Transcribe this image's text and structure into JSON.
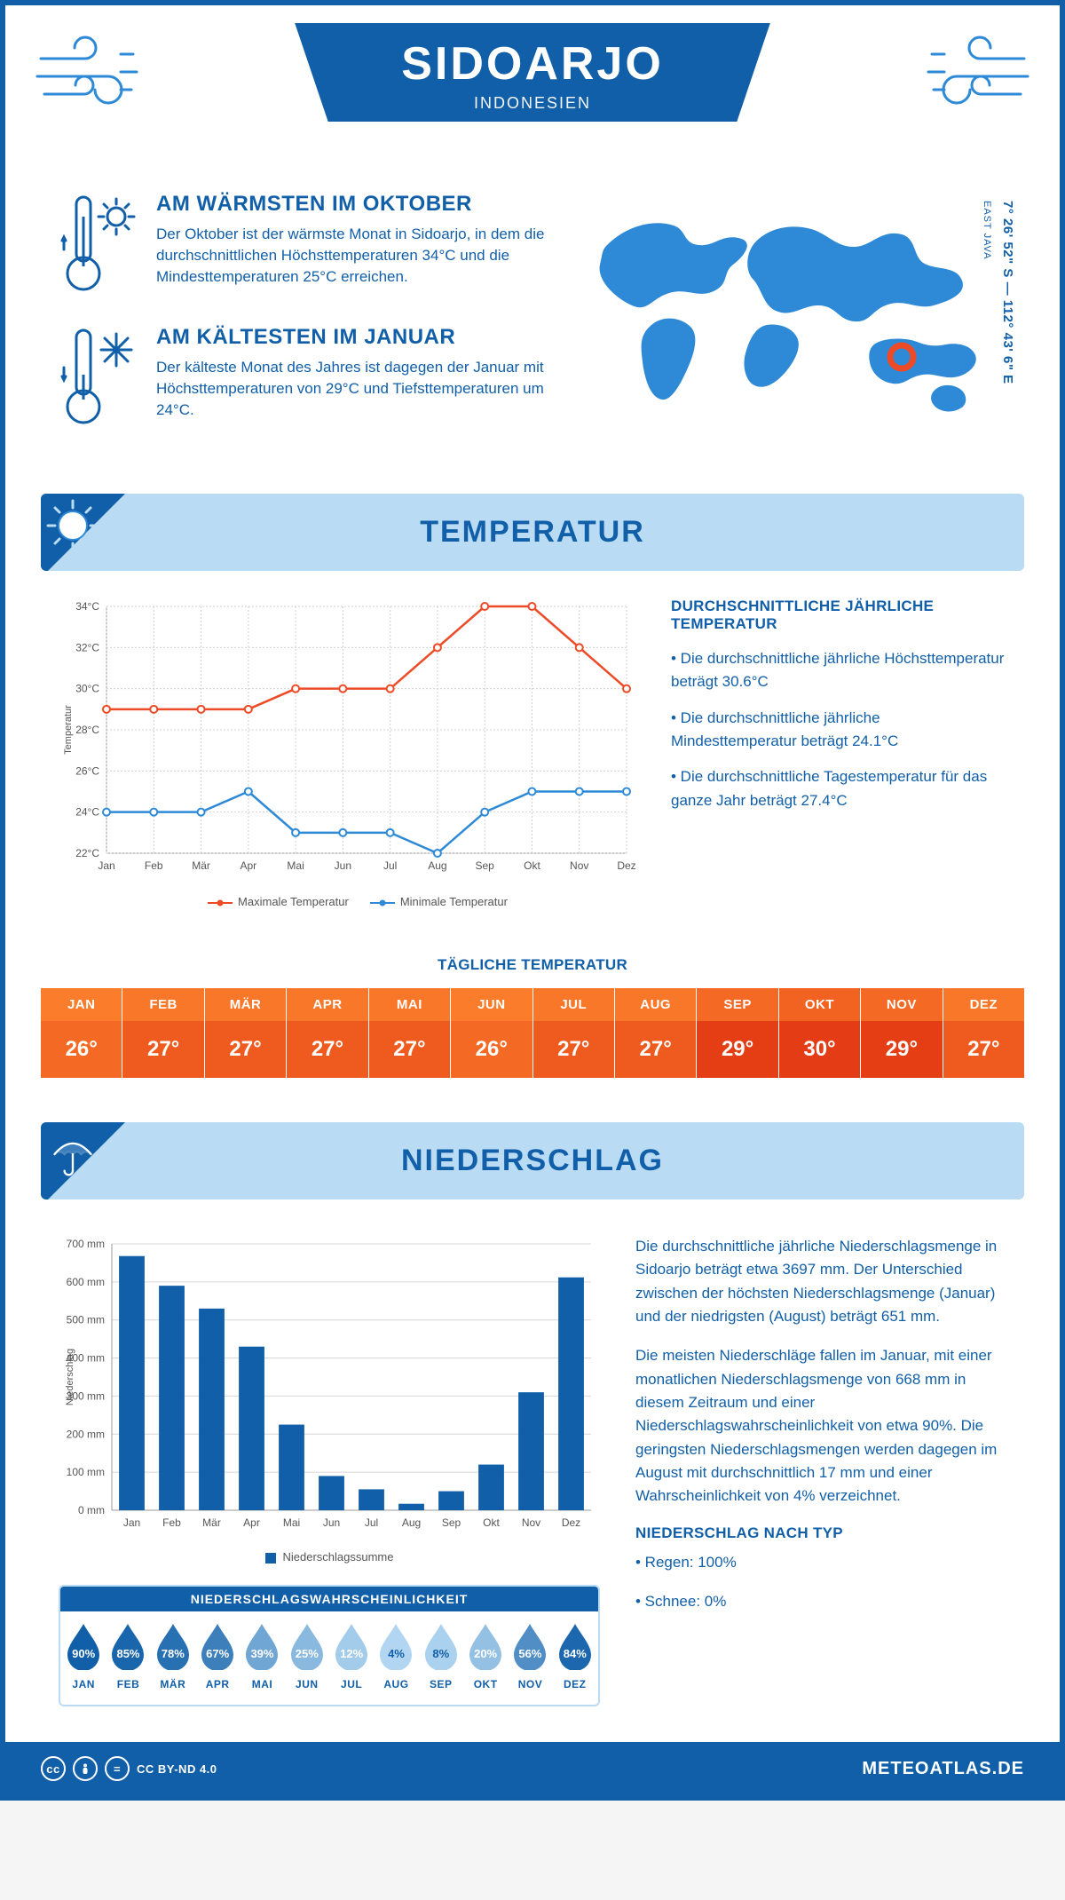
{
  "header": {
    "title": "SIDOARJO",
    "subtitle": "INDONESIEN"
  },
  "coordinates": "7° 26' 52\" S — 112° 43' 6\" E",
  "region": "EAST JAVA",
  "marker_color": "#ed4b27",
  "map_color": "#2e8ad6",
  "facts": [
    {
      "title": "AM WÄRMSTEN IM OKTOBER",
      "text": "Der Oktober ist der wärmste Monat in Sidoarjo, in dem die durchschnittlichen Höchsttemperaturen 34°C und die Mindesttemperaturen 25°C erreichen.",
      "icon": "thermo-hot"
    },
    {
      "title": "AM KÄLTESTEN IM JANUAR",
      "text": "Der kälteste Monat des Jahres ist dagegen der Januar mit Höchsttemperaturen von 29°C und Tiefsttemperaturen um 24°C.",
      "icon": "thermo-cold"
    }
  ],
  "sections": {
    "temperature_title": "TEMPERATUR",
    "precipitation_title": "NIEDERSCHLAG"
  },
  "temperature": {
    "side_title": "DURCHSCHNITTLICHE JÄHRLICHE TEMPERATUR",
    "bullets": [
      "• Die durchschnittliche jährliche Höchsttemperatur beträgt 30.6°C",
      "• Die durchschnittliche jährliche Mindesttemperatur beträgt 24.1°C",
      "• Die durchschnittliche Tagestemperatur für das ganze Jahr beträgt 27.4°C"
    ],
    "chart": {
      "months": [
        "Jan",
        "Feb",
        "Mär",
        "Apr",
        "Mai",
        "Jun",
        "Jul",
        "Aug",
        "Sep",
        "Okt",
        "Nov",
        "Dez"
      ],
      "ylim": [
        22,
        34
      ],
      "ystep": 2,
      "ylabel": "Temperatur",
      "series": [
        {
          "name": "Maximale Temperatur",
          "color": "#ed4b27",
          "values": [
            29,
            29,
            29,
            29,
            30,
            30,
            30,
            32,
            34,
            34,
            32,
            30
          ]
        },
        {
          "name": "Minimale Temperatur",
          "color": "#2e8ad6",
          "values": [
            24,
            24,
            24,
            25,
            23,
            23,
            23,
            22,
            24,
            25,
            25,
            25
          ]
        }
      ],
      "grid_color": "#d0d0d0"
    },
    "daily_title": "TÄGLICHE TEMPERATUR",
    "daily": {
      "months": [
        "JAN",
        "FEB",
        "MÄR",
        "APR",
        "MAI",
        "JUN",
        "JUL",
        "AUG",
        "SEP",
        "OKT",
        "NOV",
        "DEZ"
      ],
      "values": [
        26,
        27,
        27,
        27,
        27,
        26,
        27,
        27,
        29,
        30,
        29,
        27
      ],
      "min": 26,
      "max": 30,
      "color_min": "#fb7d2b",
      "color_max": "#e43c14"
    }
  },
  "precipitation": {
    "paragraphs": [
      "Die durchschnittliche jährliche Niederschlagsmenge in Sidoarjo beträgt etwa 3697 mm. Der Unterschied zwischen der höchsten Niederschlagsmenge (Januar) und der niedrigsten (August) beträgt 651 mm.",
      "Die meisten Niederschläge fallen im Januar, mit einer monatlichen Niederschlagsmenge von 668 mm in diesem Zeitraum und einer Niederschlagswahrscheinlichkeit von etwa 90%. Die geringsten Niederschlagsmengen werden dagegen im August mit durchschnittlich 17 mm und einer Wahrscheinlichkeit von 4% verzeichnet."
    ],
    "type_title": "NIEDERSCHLAG NACH TYP",
    "types": [
      "• Regen: 100%",
      "• Schnee: 0%"
    ],
    "chart": {
      "months": [
        "Jan",
        "Feb",
        "Mär",
        "Apr",
        "Mai",
        "Jun",
        "Jul",
        "Aug",
        "Sep",
        "Okt",
        "Nov",
        "Dez"
      ],
      "values": [
        668,
        590,
        530,
        430,
        225,
        90,
        55,
        17,
        50,
        120,
        310,
        612
      ],
      "ylim": [
        0,
        700
      ],
      "ystep": 100,
      "ylabel": "Niederschlag",
      "bar_color": "#115fa8",
      "legend": "Niederschlagssumme"
    },
    "probability": {
      "title": "NIEDERSCHLAGSWAHRSCHEINLICHKEIT",
      "months": [
        "JAN",
        "FEB",
        "MÄR",
        "APR",
        "MAI",
        "JUN",
        "JUL",
        "AUG",
        "SEP",
        "OKT",
        "NOV",
        "DEZ"
      ],
      "values": [
        90,
        85,
        78,
        67,
        39,
        25,
        12,
        4,
        8,
        20,
        56,
        84
      ],
      "color_high": "#115fa8",
      "color_low": "#b9dcf4"
    }
  },
  "footer": {
    "license": "CC BY-ND 4.0",
    "brand": "METEOATLAS.DE"
  }
}
